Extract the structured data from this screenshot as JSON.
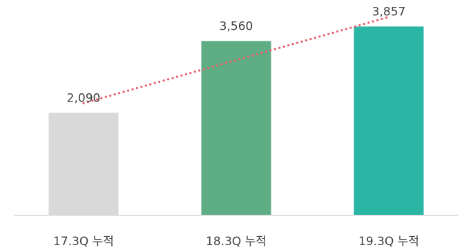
{
  "chart_data": {
    "type": "bar",
    "title": "",
    "xlabel": "",
    "ylabel": "",
    "categories": [
      "17.3Q 누적",
      "18.3Q 누적",
      "19.3Q 누적"
    ],
    "values": [
      2090,
      3560,
      3857
    ],
    "value_labels": [
      "2,090",
      "3,560",
      "3,857"
    ],
    "ylim": [
      0,
      4400
    ],
    "grid": false,
    "legend": "none",
    "bar_colors": [
      "#d9d9d9",
      "#5fad85",
      "#2ab5a5"
    ],
    "trendline": {
      "type": "linear",
      "style": "dotted",
      "color": "#e8606a"
    },
    "axis_line_color": "#bfbfbf",
    "text_color": "#404040"
  }
}
